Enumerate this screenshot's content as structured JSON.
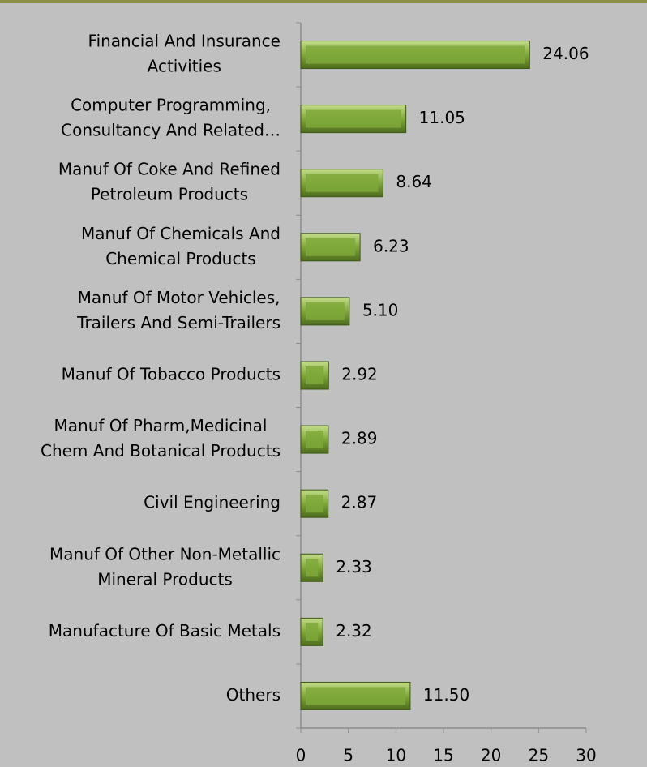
{
  "chart_data": {
    "type": "bar",
    "orientation": "horizontal",
    "categories": [
      [
        "Financial And Insurance",
        "Activities"
      ],
      [
        "Computer Programming,",
        "Consultancy And Related…"
      ],
      [
        "Manuf Of Coke And Refined",
        "Petroleum Products"
      ],
      [
        "Manuf Of Chemicals And",
        "Chemical Products"
      ],
      [
        "Manuf Of Motor Vehicles,",
        "Trailers And Semi-Trailers"
      ],
      [
        "Manuf Of Tobacco Products"
      ],
      [
        "Manuf Of Pharm,Medicinal",
        "Chem And Botanical Products"
      ],
      [
        "Civil Engineering"
      ],
      [
        "Manuf Of Other Non-Metallic",
        "Mineral Products"
      ],
      [
        "Manufacture Of Basic Metals"
      ],
      [
        "Others"
      ]
    ],
    "values": [
      24.06,
      11.05,
      8.64,
      6.23,
      5.1,
      2.92,
      2.89,
      2.87,
      2.33,
      2.32,
      11.5
    ],
    "value_labels": [
      "24.06",
      "11.05",
      "8.64",
      "6.23",
      "5.10",
      "2.92",
      "2.89",
      "2.87",
      "2.33",
      "2.32",
      "11.50"
    ],
    "color": "#7fa83a",
    "xlim": [
      0,
      30
    ],
    "xticks": [
      0,
      5,
      10,
      15,
      20,
      25,
      30
    ],
    "grid": false
  }
}
